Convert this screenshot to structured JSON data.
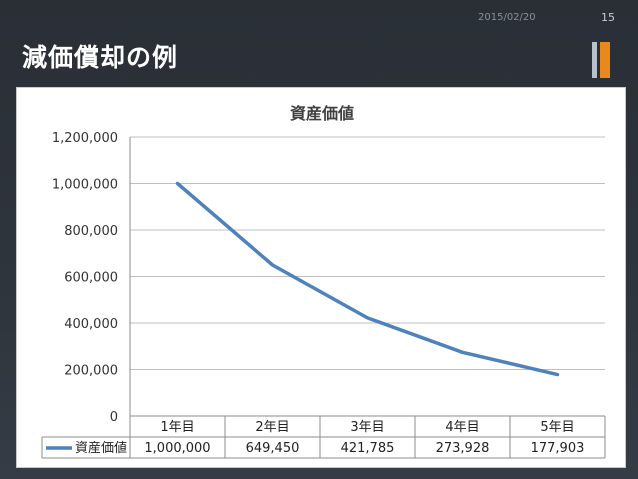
{
  "header": {
    "date": "2015/02/20",
    "page_number": "15",
    "title": "減価償却の例"
  },
  "chart_data": {
    "type": "line",
    "title": "資産価値",
    "categories": [
      "1年目",
      "2年目",
      "3年目",
      "4年目",
      "5年目"
    ],
    "series": [
      {
        "name": "資産価値",
        "values": [
          1000000,
          649450,
          421785,
          273928,
          177903
        ],
        "color": "#4f81bd"
      }
    ],
    "value_labels": [
      "1,000,000",
      "649,450",
      "421,785",
      "273,928",
      "177,903"
    ],
    "ylim": [
      0,
      1200000
    ],
    "yticks": [
      0,
      200000,
      400000,
      600000,
      800000,
      1000000,
      1200000
    ],
    "ytick_labels": [
      "0",
      "200,000",
      "400,000",
      "600,000",
      "800,000",
      "1,000,000",
      "1,200,000"
    ],
    "grid": true,
    "legend": "data-table"
  }
}
